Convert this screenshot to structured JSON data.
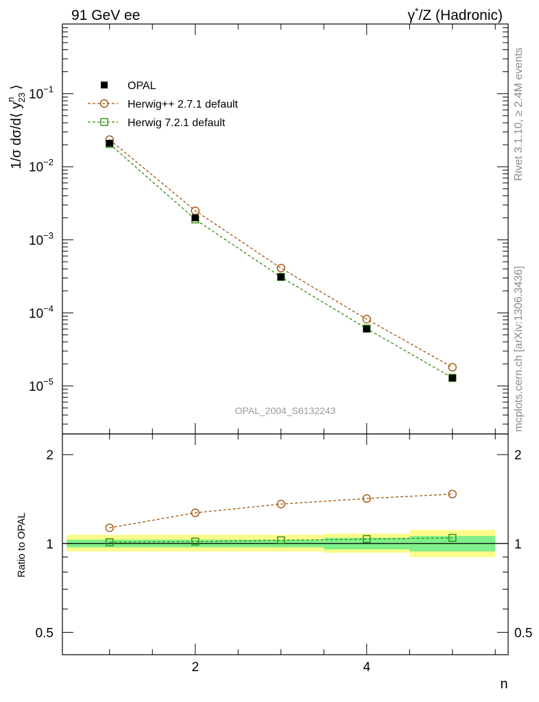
{
  "header": {
    "left": "91 GeV ee",
    "right_parts": [
      "γ",
      "*",
      "/Z (Hadronic)"
    ]
  },
  "side_labels": {
    "rivet": "Rivet 3.1.10, ≥ 2.4M events",
    "mcplots": "mcplots.cern.ch [arXiv:1306.3436]"
  },
  "watermark": "OPAL_2004_S6132243",
  "ylabel_parts": {
    "prefix": "1/σ dσ/d⟨ y",
    "sup": "n",
    "sub": "23",
    "suffix": "⟩"
  },
  "ratio_ylabel": "Ratio to OPAL",
  "xlabel": "n",
  "colors": {
    "opal": "#000000",
    "herwigpp": "#a0520a",
    "herwig7": "#2e8b0b",
    "band_inner": "#7ff08a",
    "band_outer": "#fbfb8a"
  },
  "chart_data": [
    {
      "type": "line",
      "scale": "log",
      "x": [
        1,
        2,
        3,
        4,
        5
      ],
      "xlim": [
        0.45,
        5.65
      ],
      "ylim": [
        2.2e-06,
        0.9
      ],
      "x_ticks": [
        2,
        4
      ],
      "y_ticks": [
        {
          "value": 0.1,
          "base": "10",
          "exp": "−1"
        },
        {
          "value": 0.01,
          "base": "10",
          "exp": "−2"
        },
        {
          "value": 0.001,
          "base": "10",
          "exp": "−3"
        },
        {
          "value": 0.0001,
          "base": "10",
          "exp": "−4"
        },
        {
          "value": 1e-05,
          "base": "10",
          "exp": "−5"
        }
      ],
      "legend_position": "top-left",
      "series": [
        {
          "name": "OPAL",
          "key": "opal",
          "marker": "filled-square",
          "values": [
            0.021,
            0.002,
            0.00031,
            6e-05,
            1.28e-05
          ]
        },
        {
          "name": "Herwig++ 2.7.1 default",
          "key": "herwigpp",
          "marker": "open-circle",
          "values": [
            0.0235,
            0.0025,
            0.00041,
            8.2e-05,
            1.8e-05
          ]
        },
        {
          "name": "Herwig 7.2.1 default",
          "key": "herwig7",
          "marker": "open-square",
          "values": [
            0.0205,
            0.0019,
            0.00031,
            6.1e-05,
            1.29e-05
          ]
        }
      ]
    },
    {
      "type": "line",
      "scale": "log",
      "x": [
        1,
        2,
        3,
        4,
        5
      ],
      "xlim": [
        0.45,
        5.65
      ],
      "ylim": [
        0.42,
        2.35
      ],
      "y_ticks": [
        {
          "value": 0.5,
          "label": "0.5"
        },
        {
          "value": 1,
          "label": "1"
        },
        {
          "value": 2,
          "label": "2"
        }
      ],
      "x_ticks": [
        {
          "value": 2,
          "label": "2"
        },
        {
          "value": 4,
          "label": "4"
        }
      ],
      "reference_line": 1,
      "uncertainty_band": {
        "inner": [
          [
            0.97,
            1.03
          ],
          [
            0.97,
            1.03
          ],
          [
            0.97,
            1.03
          ],
          [
            0.955,
            1.045
          ],
          [
            0.94,
            1.06
          ]
        ],
        "outer": [
          [
            0.94,
            1.07
          ],
          [
            0.94,
            1.07
          ],
          [
            0.94,
            1.07
          ],
          [
            0.93,
            1.08
          ],
          [
            0.9,
            1.11
          ]
        ]
      },
      "series": [
        {
          "name": "Herwig++ 2.7.1 default",
          "key": "herwigpp",
          "marker": "open-circle",
          "values": [
            1.13,
            1.27,
            1.36,
            1.42,
            1.47
          ]
        },
        {
          "name": "Herwig 7.2.1 default",
          "key": "herwig7",
          "marker": "open-square",
          "values": [
            1.01,
            1.015,
            1.025,
            1.035,
            1.045
          ]
        }
      ]
    }
  ]
}
